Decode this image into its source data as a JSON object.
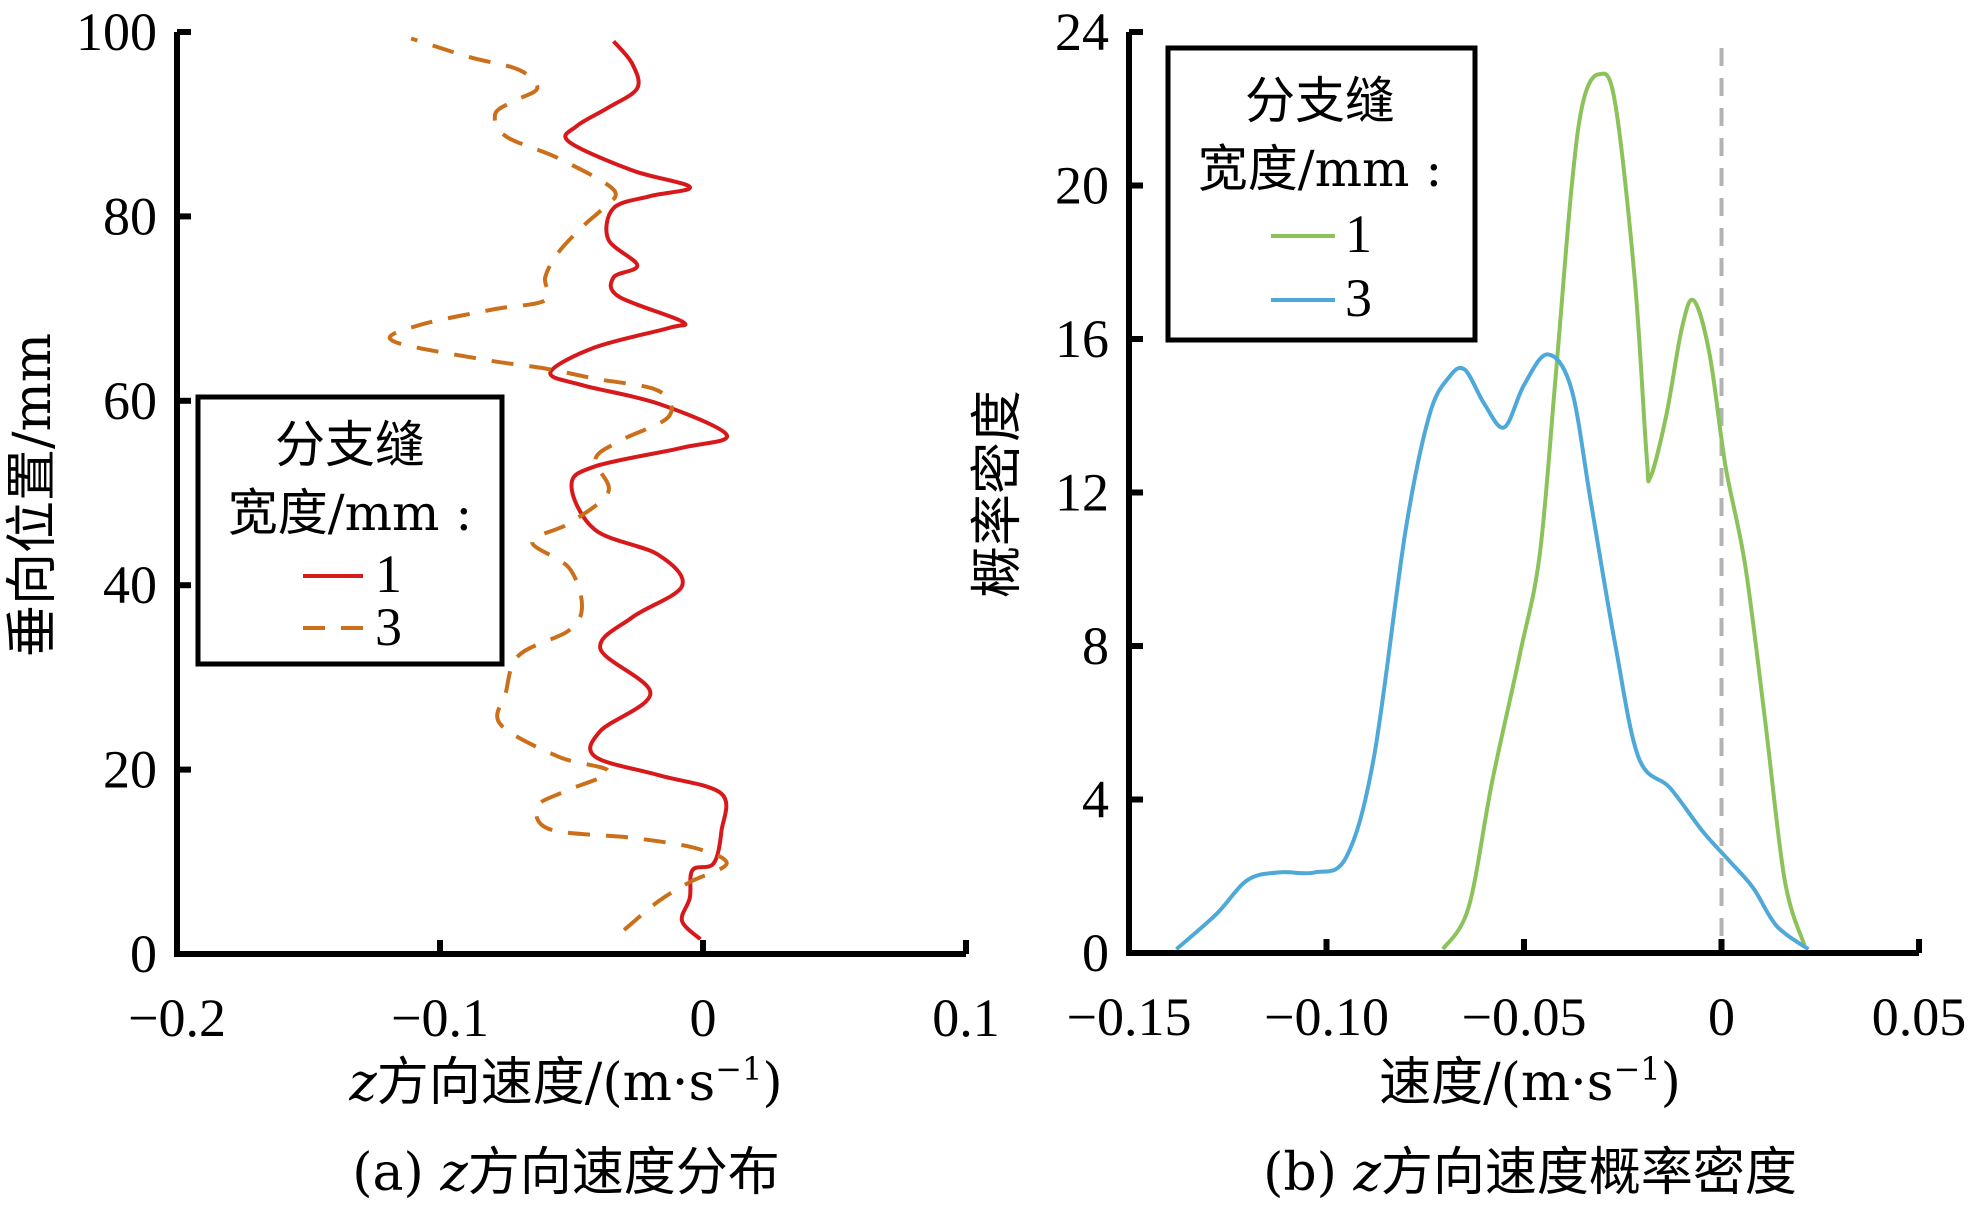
{
  "chart_data": [
    {
      "type": "line",
      "panel": "a",
      "caption_prefix": "(a) ",
      "caption_var": "z",
      "caption_text": "方向速度分布",
      "xlabel_var": "z",
      "xlabel_text": "方向速度/(m·s",
      "xlabel_sup": "−1",
      "xlabel_close": ")",
      "ylabel": "垂向位置/mm",
      "xlim": [
        -0.2,
        0.1
      ],
      "ylim": [
        0,
        100
      ],
      "xticks": [
        -0.2,
        -0.1,
        0,
        0.1
      ],
      "xtick_labels": [
        "−0.2",
        "−0.1",
        "0",
        "0.1"
      ],
      "yticks": [
        0,
        20,
        40,
        60,
        80,
        100
      ],
      "ytick_labels": [
        "0",
        "20",
        "40",
        "60",
        "80",
        "100"
      ],
      "grid": false,
      "legend": {
        "title_line1": "分支缝",
        "title_line2": "宽度/mm :",
        "placement": "left-middle"
      },
      "series": [
        {
          "name": "1",
          "color": "#D7191C",
          "style": "solid",
          "points": [
            [
              -0.001,
              1.6
            ],
            [
              -0.008,
              3.6
            ],
            [
              -0.005,
              6.1
            ],
            [
              -0.004,
              9.1
            ],
            [
              0.004,
              9.8
            ],
            [
              0.007,
              13.3
            ],
            [
              0.007,
              17.4
            ],
            [
              -0.017,
              19.4
            ],
            [
              -0.041,
              21.4
            ],
            [
              -0.039,
              24.2
            ],
            [
              -0.02,
              28.3
            ],
            [
              -0.039,
              33.1
            ],
            [
              -0.027,
              36.5
            ],
            [
              -0.008,
              39.9
            ],
            [
              -0.017,
              43.3
            ],
            [
              -0.041,
              46.0
            ],
            [
              -0.05,
              50.8
            ],
            [
              -0.041,
              52.9
            ],
            [
              -0.008,
              54.9
            ],
            [
              0.009,
              56.3
            ],
            [
              -0.017,
              59.7
            ],
            [
              -0.046,
              61.7
            ],
            [
              -0.058,
              63.1
            ],
            [
              -0.041,
              65.8
            ],
            [
              -0.013,
              67.9
            ],
            [
              -0.008,
              68.6
            ],
            [
              -0.032,
              71.3
            ],
            [
              -0.034,
              73.4
            ],
            [
              -0.025,
              74.7
            ],
            [
              -0.036,
              77.5
            ],
            [
              -0.034,
              80.9
            ],
            [
              -0.02,
              82.2
            ],
            [
              -0.005,
              83.2
            ],
            [
              -0.027,
              85.0
            ],
            [
              -0.051,
              88.1
            ],
            [
              -0.048,
              89.8
            ],
            [
              -0.036,
              91.8
            ],
            [
              -0.025,
              93.9
            ],
            [
              -0.027,
              96.6
            ],
            [
              -0.034,
              99.0
            ]
          ]
        },
        {
          "name": "3",
          "color": "#CC6F1A",
          "style": "dashed",
          "points": [
            [
              -0.03,
              2.6
            ],
            [
              -0.017,
              5.7
            ],
            [
              -0.005,
              7.8
            ],
            [
              0.009,
              9.8
            ],
            [
              -0.003,
              11.5
            ],
            [
              -0.027,
              12.6
            ],
            [
              -0.058,
              13.5
            ],
            [
              -0.063,
              16.0
            ],
            [
              -0.053,
              17.6
            ],
            [
              -0.036,
              19.8
            ],
            [
              -0.055,
              21.4
            ],
            [
              -0.077,
              24.9
            ],
            [
              -0.075,
              28.3
            ],
            [
              -0.07,
              32.4
            ],
            [
              -0.051,
              35.1
            ],
            [
              -0.046,
              37.8
            ],
            [
              -0.051,
              41.9
            ],
            [
              -0.065,
              44.7
            ],
            [
              -0.051,
              46.7
            ],
            [
              -0.036,
              50.1
            ],
            [
              -0.041,
              53.6
            ],
            [
              -0.032,
              55.6
            ],
            [
              -0.013,
              58.3
            ],
            [
              -0.017,
              61.1
            ],
            [
              -0.041,
              62.4
            ],
            [
              -0.06,
              63.5
            ],
            [
              -0.084,
              64.5
            ],
            [
              -0.118,
              66.5
            ],
            [
              -0.108,
              68.2
            ],
            [
              -0.08,
              69.9
            ],
            [
              -0.06,
              70.9
            ],
            [
              -0.06,
              73.4
            ],
            [
              -0.055,
              76.1
            ],
            [
              -0.045,
              79.1
            ],
            [
              -0.038,
              80.9
            ],
            [
              -0.034,
              82.9
            ],
            [
              -0.055,
              86.3
            ],
            [
              -0.075,
              88.7
            ],
            [
              -0.079,
              91.1
            ],
            [
              -0.072,
              92.5
            ],
            [
              -0.063,
              93.9
            ],
            [
              -0.07,
              95.9
            ],
            [
              -0.089,
              97.3
            ],
            [
              -0.111,
              99.3
            ]
          ]
        }
      ]
    },
    {
      "type": "line",
      "panel": "b",
      "caption_prefix": "(b) ",
      "caption_var": "z",
      "caption_text": "方向速度概率密度",
      "xlabel_var": "",
      "xlabel_text": "速度/(m·s",
      "xlabel_sup": "−1",
      "xlabel_close": ")",
      "ylabel": "概率密度",
      "xlim": [
        -0.15,
        0.05
      ],
      "ylim": [
        0,
        24
      ],
      "xticks": [
        -0.15,
        -0.1,
        -0.05,
        0,
        0.05
      ],
      "xtick_labels": [
        "−0.15",
        "−0.10",
        "−0.05",
        "0",
        "0.05"
      ],
      "yticks": [
        0,
        4,
        8,
        12,
        16,
        20,
        24
      ],
      "ytick_labels": [
        "0",
        "4",
        "8",
        "12",
        "16",
        "20",
        "24"
      ],
      "grid": false,
      "reference_line": {
        "x": 0,
        "color": "#B3B3B3",
        "style": "dashed"
      },
      "legend": {
        "title_line1": "分支缝",
        "title_line2": "宽度/mm :",
        "placement": "top-left"
      },
      "series": [
        {
          "name": "1",
          "color": "#8BC35A",
          "style": "solid",
          "points": [
            [
              -0.0705,
              0.1
            ],
            [
              -0.064,
              1.2
            ],
            [
              -0.058,
              4.5
            ],
            [
              -0.051,
              7.8
            ],
            [
              -0.046,
              10.4
            ],
            [
              -0.042,
              15.0
            ],
            [
              -0.038,
              19.9
            ],
            [
              -0.035,
              22.2
            ],
            [
              -0.031,
              22.9
            ],
            [
              -0.027,
              22.2
            ],
            [
              -0.022,
              17.6
            ],
            [
              -0.019,
              13.0
            ],
            [
              -0.018,
              12.4
            ],
            [
              -0.014,
              14.0
            ],
            [
              -0.01,
              16.3
            ],
            [
              -0.007,
              17.0
            ],
            [
              -0.003,
              15.6
            ],
            [
              0.001,
              12.7
            ],
            [
              0.006,
              10.1
            ],
            [
              0.011,
              6.1
            ],
            [
              0.016,
              1.9
            ],
            [
              0.021,
              0.2
            ]
          ]
        },
        {
          "name": "3",
          "color": "#4EA8D8",
          "style": "solid",
          "points": [
            [
              -0.138,
              0.1
            ],
            [
              -0.128,
              1.0
            ],
            [
              -0.12,
              1.9
            ],
            [
              -0.112,
              2.1
            ],
            [
              -0.103,
              2.1
            ],
            [
              -0.095,
              2.5
            ],
            [
              -0.088,
              5.1
            ],
            [
              -0.08,
              11.0
            ],
            [
              -0.074,
              14.0
            ],
            [
              -0.069,
              15.0
            ],
            [
              -0.065,
              15.2
            ],
            [
              -0.06,
              14.3
            ],
            [
              -0.055,
              13.7
            ],
            [
              -0.05,
              14.8
            ],
            [
              -0.044,
              15.6
            ],
            [
              -0.038,
              14.7
            ],
            [
              -0.033,
              11.7
            ],
            [
              -0.027,
              8.1
            ],
            [
              -0.021,
              5.1
            ],
            [
              -0.013,
              4.3
            ],
            [
              -0.005,
              3.2
            ],
            [
              0.002,
              2.4
            ],
            [
              0.008,
              1.7
            ],
            [
              0.014,
              0.7
            ],
            [
              0.022,
              0.1
            ]
          ]
        }
      ]
    }
  ]
}
